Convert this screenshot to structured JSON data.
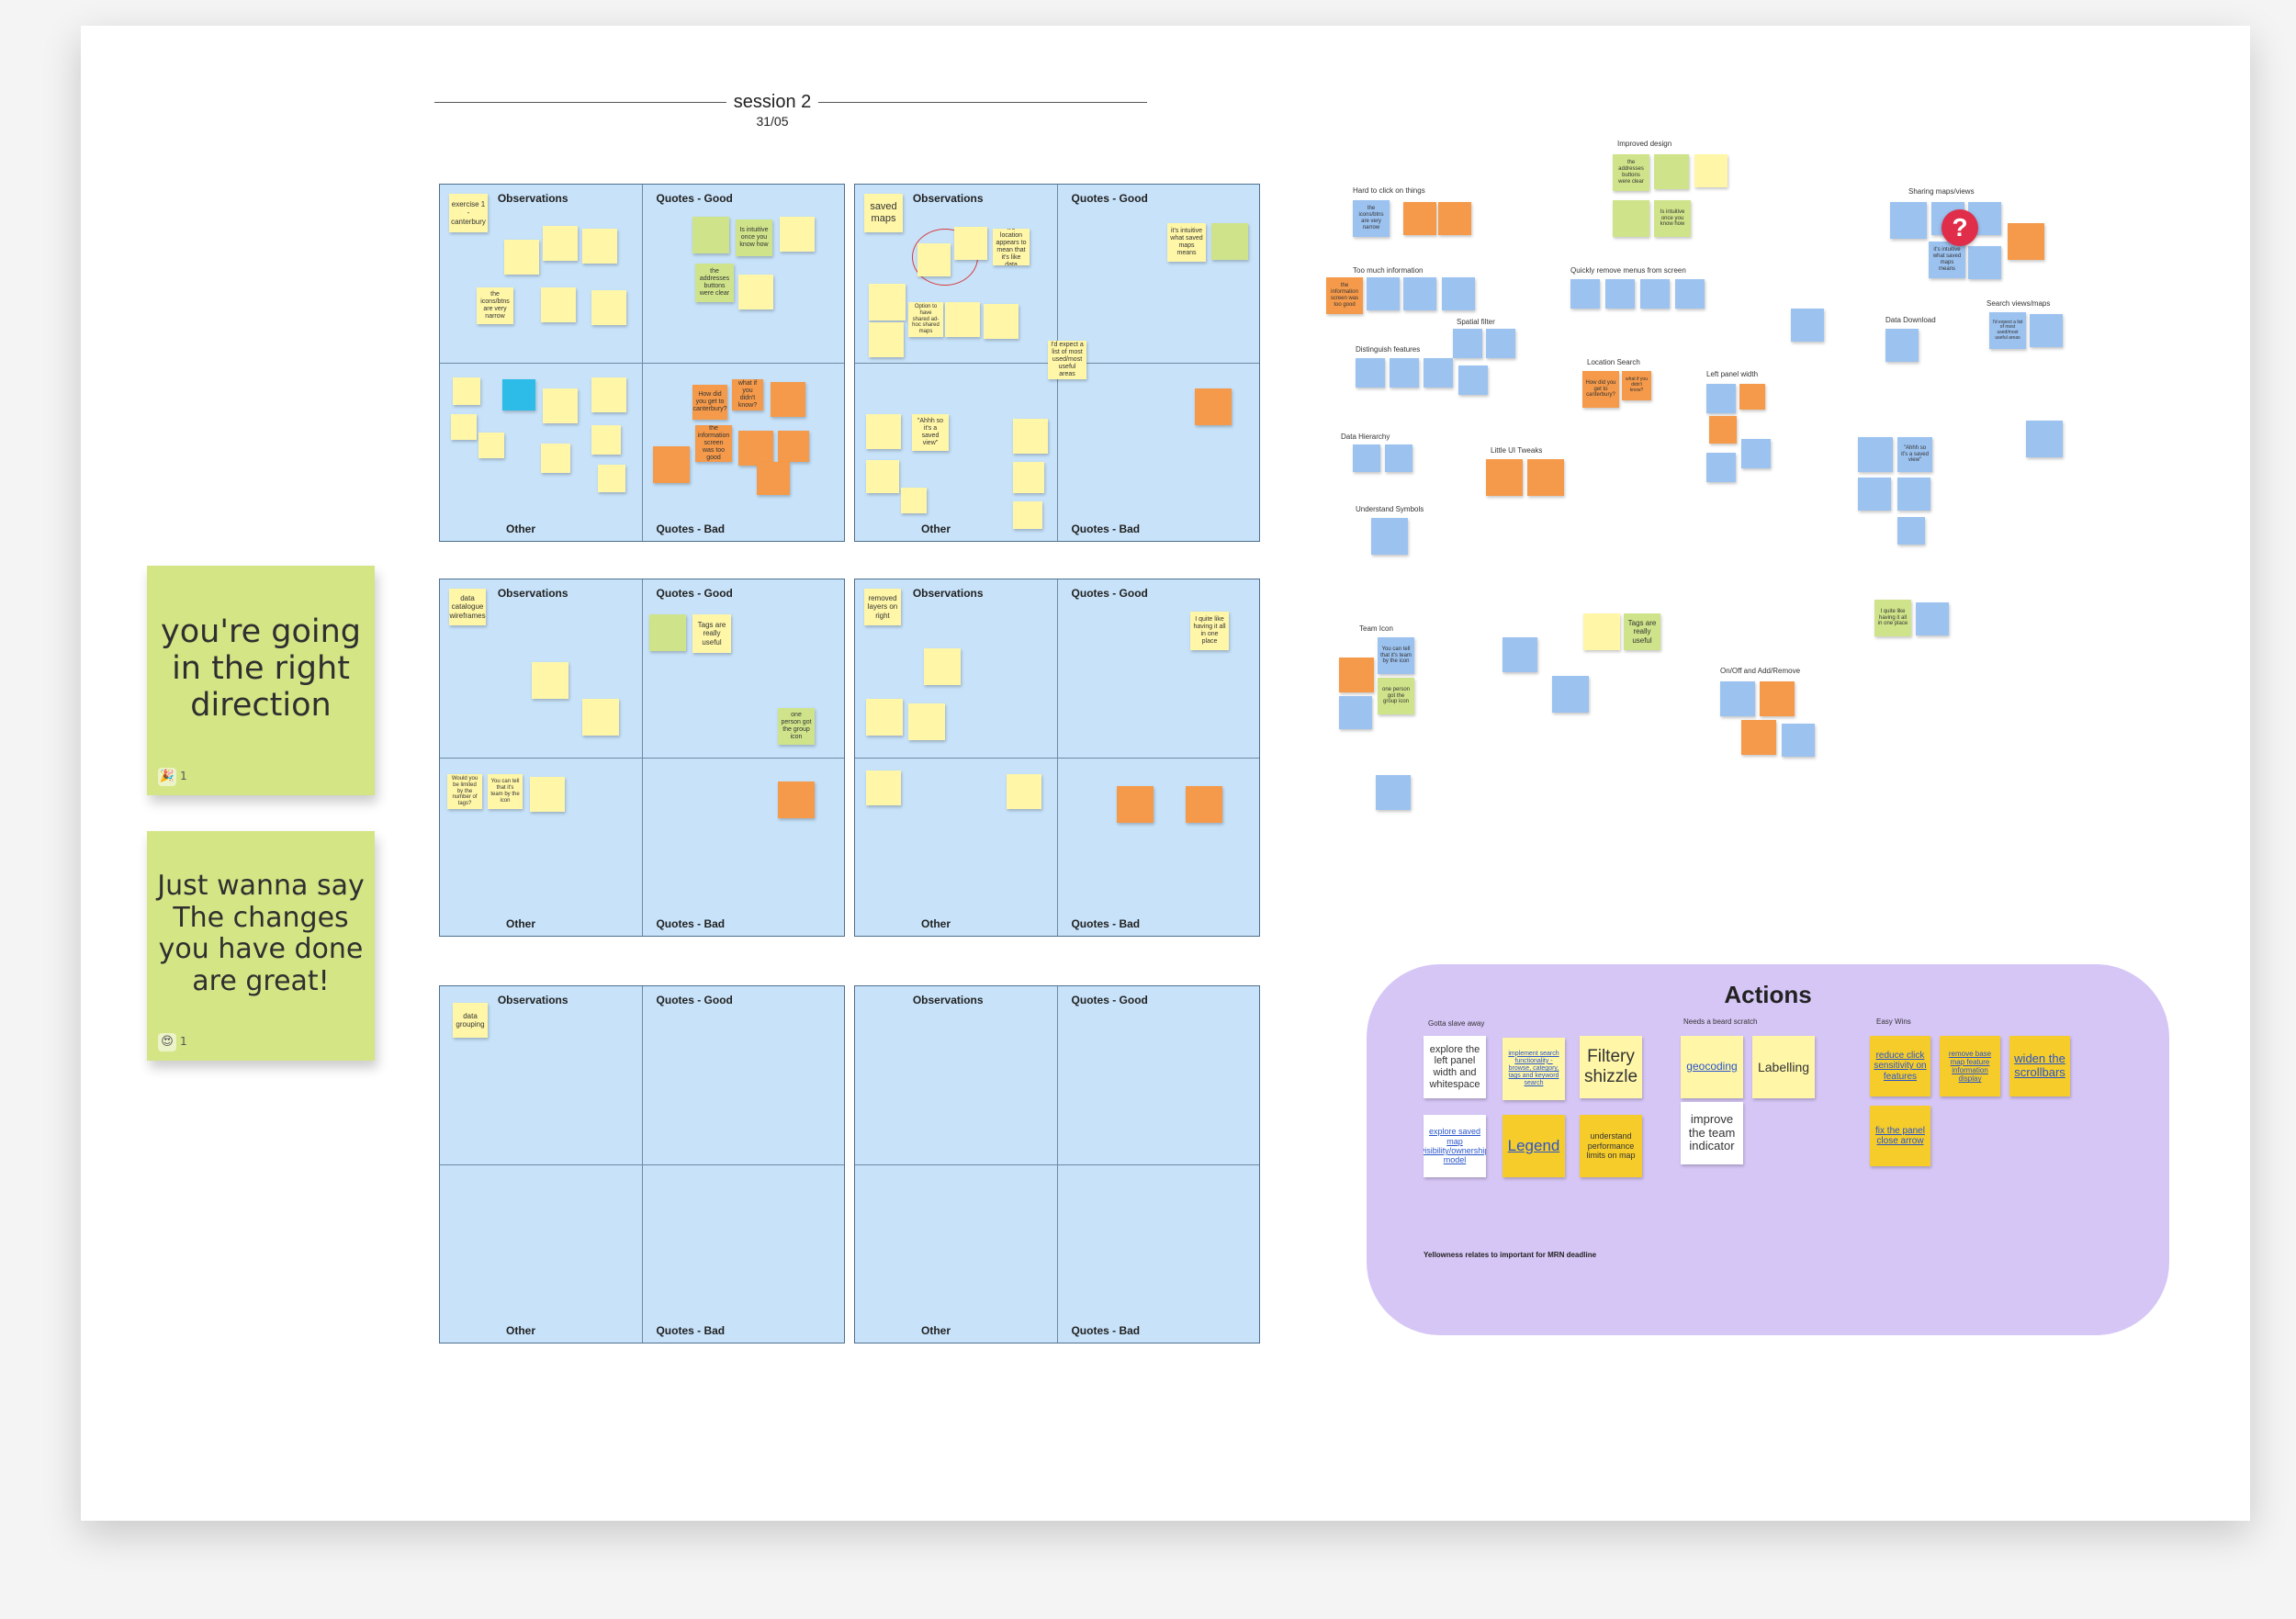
{
  "session": {
    "title": "session 2",
    "date": "31/05"
  },
  "quadrant_labels": {
    "observations": "Observations",
    "quotes_good": "Quotes - Good",
    "other": "Other",
    "quotes_bad": "Quotes - Bad"
  },
  "feedback": {
    "note1": {
      "text": "you're going in the right direction",
      "reaction": "🎉",
      "count": "1"
    },
    "note2": {
      "text": "Just wanna say The changes you have done are great!",
      "reaction": "😍",
      "count": "1"
    }
  },
  "boards": {
    "b1": {
      "tag": "exercise 1 - canterbury",
      "n1": "the icons/btns are very narrow",
      "n2": "the addresses buttons were clear",
      "n3": "Is intuitive once you know how",
      "n4": "How did you get to canterbury?",
      "n5": "what if you didn't know?",
      "n6": "the information screen was too good"
    },
    "b2": {
      "tag": "saved maps",
      "n1": "it's location appears to mean that it's like data",
      "n2": "it's intuitive what saved maps means",
      "n3": "\"Ahhh so it's a saved view\"",
      "n4": "I'd expect a list of most used/most useful areas",
      "n5": "Option to have shared ad-hoc shared maps"
    },
    "b3": {
      "tag": "data catalogue wireframes",
      "n1": "Tags are really useful",
      "n2": "one person got the group icon",
      "n3": "You can tell that it's team by the icon",
      "n4": "Would you be limited by the number of tags?"
    },
    "b4": {
      "tag": "removed layers on right",
      "n1": "I quite like having it all in one place"
    },
    "b5": {
      "tag": "data grouping"
    }
  },
  "clusters": {
    "improved_design": "Improved design",
    "hard_to_click": "Hard to click on things",
    "too_much_info": "Too much information",
    "quickly_remove": "Quickly remove menus from screen",
    "spatial_filter": "Spatial filter",
    "distinguish": "Distinguish features",
    "location_search": "Location Search",
    "left_panel": "Left panel width",
    "data_hierarchy": "Data Hierarchy",
    "little_tweaks": "Little UI Tweaks",
    "understand_symbols": "Understand Symbols",
    "sharing": "Sharing maps/views",
    "data_download": "Data Download",
    "search_views": "Search views/maps",
    "team_icon": "Team Icon",
    "onoff": "On/Off and Add/Remove"
  },
  "right_notes": {
    "addresses": "the addresses buttons were clear",
    "intuitive": "Is intuitive once you know how",
    "narrow": "the icons/btns are very narrow",
    "info_good": "the information screen was too good",
    "canterbury": "How did you get to canterbury?",
    "didnt_know": "what if you didn't know?",
    "saved_view": "\"Ahhh so it's a saved view\"",
    "what_saved": "it's intuitive what saved maps means",
    "expect_list": "I'd expect a list of most used/most useful areas",
    "tags": "Tags are really useful",
    "team_tell": "You can tell that it's team by the icon",
    "one_person": "one person got the group icon",
    "all_one": "I quite like having it all in one place",
    "location": "its location appears to mean that it's like data"
  },
  "actions": {
    "title": "Actions",
    "groups": {
      "slave": "Gotta slave away",
      "scratch": "Needs a beard scratch",
      "wins": "Easy Wins"
    },
    "items": {
      "explore_left": "explore the left panel width and whitespace",
      "implement_search": "implement search functionality - browse, category, tags and keyword search",
      "filtery": "Filtery shizzle",
      "explore_saved": "explore saved map visibility/ownership model",
      "legend": "Legend",
      "understand_perf": "understand performance limits on map",
      "geocoding": "geocoding",
      "labelling": "Labelling",
      "improve_team": "improve the team indicator",
      "reduce_click": "reduce click sensitivity on features",
      "remove_base": "remove base map feature information display",
      "widen": "widen the scrollbars",
      "fix_panel": "fix the panel close arrow"
    },
    "footer": "Yellowness relates to important for MRN deadline"
  },
  "colors": {
    "quadrant_bg": "#c7e2f9",
    "actions_bg": "#d6c6f6",
    "sticky_green": "#d3e585",
    "alert_red": "#e02d4a"
  }
}
